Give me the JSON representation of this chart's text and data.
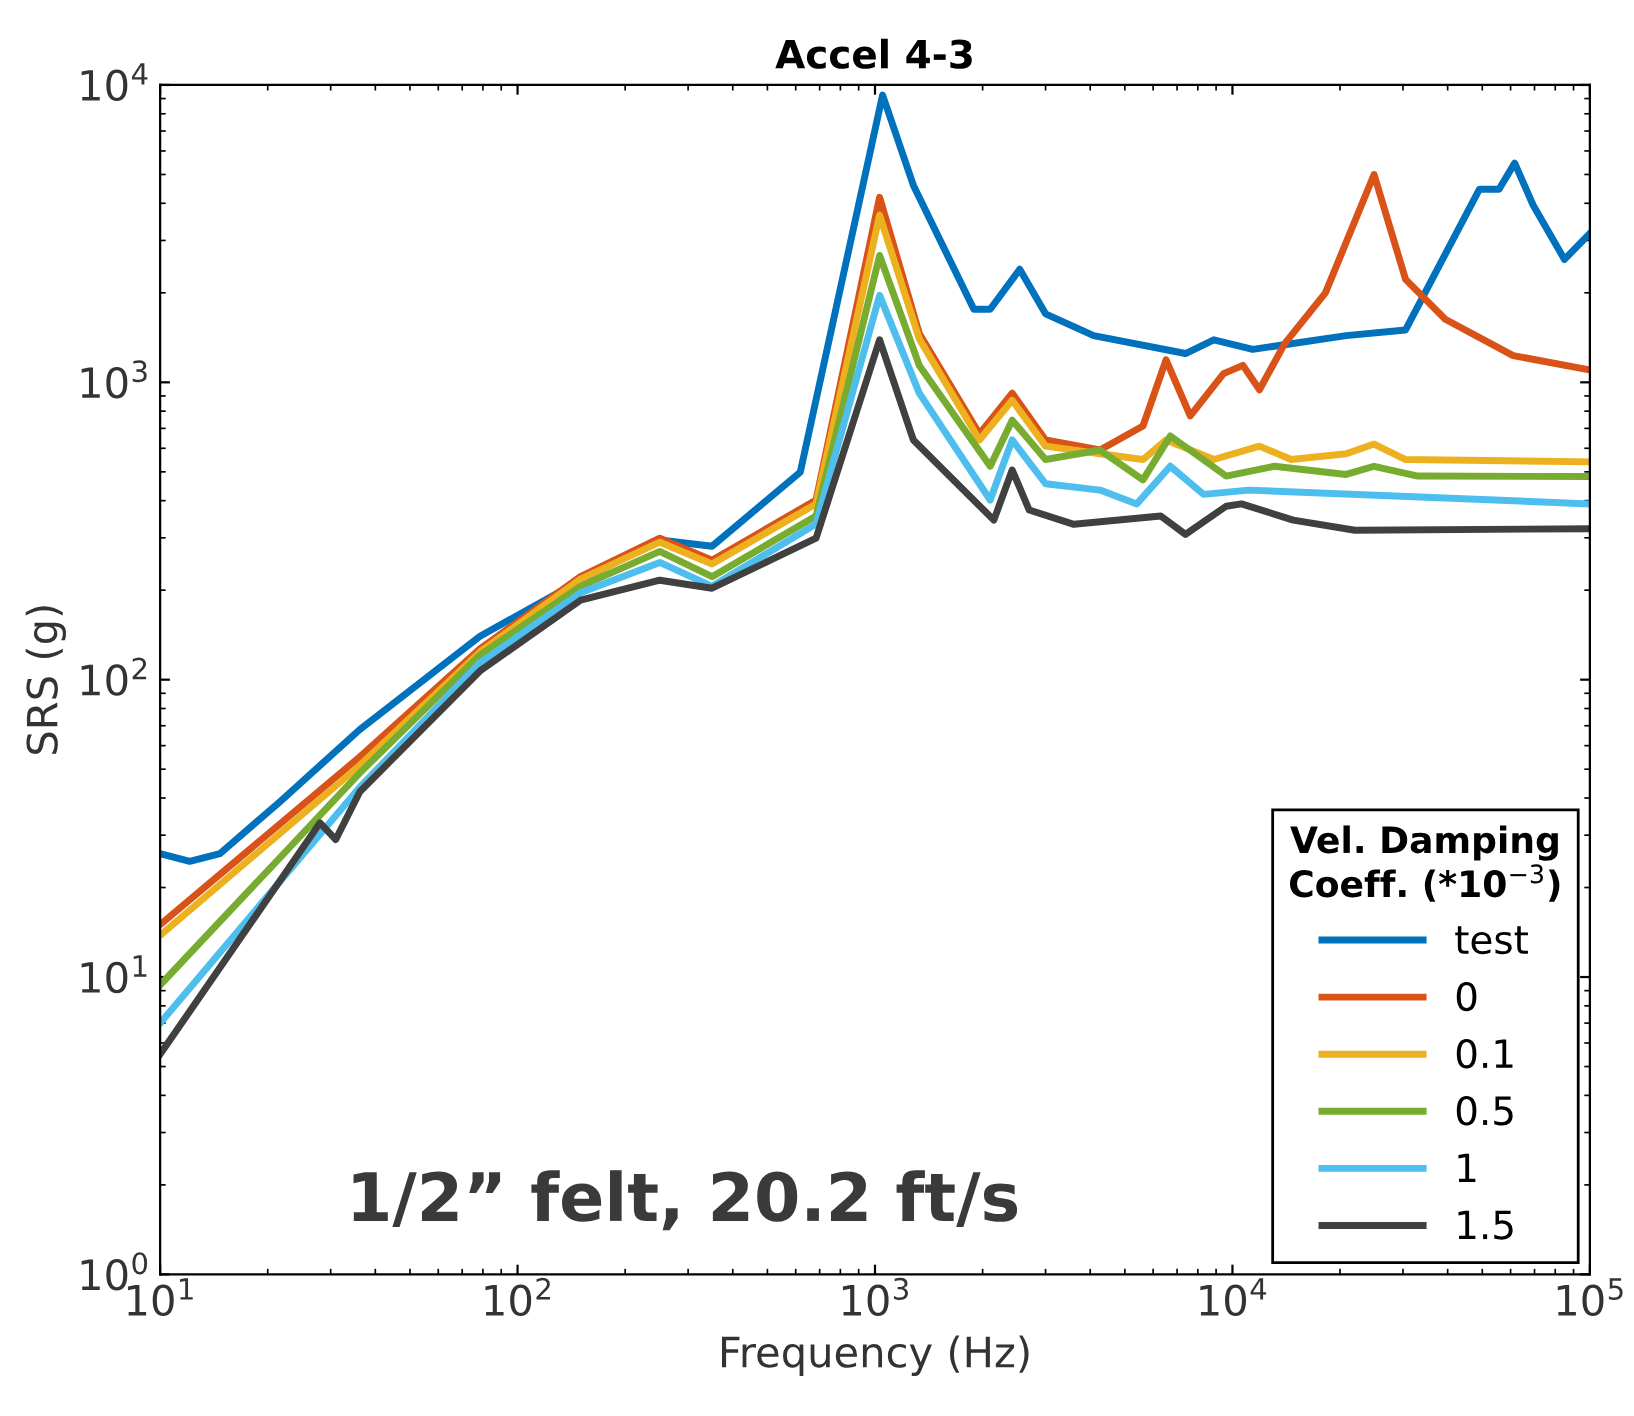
{
  "chart_data": {
    "type": "line",
    "title": "Accel 4-3",
    "xlabel": "Frequency (Hz)",
    "ylabel": "SRS (g)",
    "legend_title": "Vel. Damping\nCoeff. (*10$^{−3}$)",
    "legend": "bottom right",
    "log": "xy",
    "grid": false,
    "line_style": "solid",
    "xlim": [
      10,
      100000
    ],
    "ylim": [
      1,
      10000
    ],
    "xticks": [
      {
        "value": 10,
        "label": "10$^{1}$"
      },
      {
        "value": 100,
        "label": "10$^{2}$"
      },
      {
        "value": 1000,
        "label": "10$^{3}$"
      },
      {
        "value": 10000,
        "label": "10$^{4}$"
      },
      {
        "value": 100000,
        "label": "10$^{5}$"
      }
    ],
    "yticks": [
      {
        "value": 1,
        "label": "10$^{0}$"
      },
      {
        "value": 10,
        "label": "10$^{1}$"
      },
      {
        "value": 100,
        "label": "10$^{2}$"
      },
      {
        "value": 1000,
        "label": "10$^{3}$"
      },
      {
        "value": 10000,
        "label": "10$^{4}$"
      }
    ],
    "annotations": [
      "1/2” felt, 20.2 ft/s"
    ],
    "series": [
      {
        "name": "test",
        "color": "#0072bd",
        "x": [
          10,
          12.1,
          14.7,
          21.7,
          36.2,
          78.5,
          150,
          250,
          350,
          618,
          1050,
          1280,
          1890,
          2100,
          2540,
          3000,
          4090,
          7390,
          8870,
          11400,
          20800,
          30500,
          39400,
          49100,
          55700,
          61600,
          69400,
          84900,
          100000
        ],
        "values": [
          26,
          24.5,
          26,
          39,
          68,
          140,
          216,
          295,
          281,
          499,
          9250,
          4600,
          1760,
          1760,
          2400,
          1700,
          1436,
          1250,
          1390,
          1290,
          1436,
          1500,
          2700,
          4460,
          4460,
          5460,
          3940,
          2590,
          3170
        ]
      },
      {
        "name": "0",
        "color": "#d95319",
        "x": [
          10,
          36.2,
          78.5,
          150,
          250,
          350,
          684,
          1030,
          1330,
          1960,
          2420,
          3000,
          4260,
          5620,
          6520,
          7620,
          9440,
          10700,
          11900,
          14000,
          18200,
          24900,
          30500,
          39400,
          61000,
          100000
        ],
        "values": [
          15,
          55,
          127,
          222,
          299,
          252,
          402,
          4190,
          1460,
          670,
          920,
          640,
          592,
          713,
          1190,
          771,
          1070,
          1140,
          944,
          1350,
          2000,
          5000,
          2220,
          1630,
          1230,
          1100
        ]
      },
      {
        "name": "0.1",
        "color": "#edb120",
        "x": [
          10,
          36.2,
          78.5,
          150,
          250,
          350,
          684,
          1030,
          1330,
          1960,
          2420,
          3000,
          4260,
          5620,
          6520,
          8870,
          11900,
          14600,
          20800,
          24900,
          30500,
          100000
        ],
        "values": [
          13.8,
          51.5,
          124,
          218,
          290,
          245,
          390,
          3650,
          1400,
          640,
          870,
          610,
          575,
          550,
          640,
          550,
          610,
          550,
          575,
          620,
          550,
          540
        ]
      },
      {
        "name": "0.5",
        "color": "#77ac30",
        "x": [
          10,
          36.2,
          78.5,
          150,
          250,
          350,
          684,
          1030,
          1330,
          2100,
          2420,
          3000,
          4260,
          5620,
          6700,
          9600,
          13100,
          20800,
          24900,
          33000,
          100000
        ],
        "values": [
          9.4,
          48.6,
          121,
          206,
          270,
          222,
          355,
          2670,
          1140,
          522,
          746,
          550,
          592,
          470,
          660,
          484,
          522,
          490,
          522,
          484,
          482
        ]
      },
      {
        "name": "1",
        "color": "#4dbeee",
        "x": [
          10,
          36.2,
          78.5,
          150,
          250,
          350,
          684,
          1030,
          1330,
          2100,
          2420,
          3000,
          4260,
          5400,
          6700,
          8300,
          11100,
          100000
        ],
        "values": [
          7,
          43.5,
          114,
          196,
          248,
          206,
          334,
          1960,
          920,
          402,
          640,
          456,
          434,
          390,
          522,
          420,
          434,
          390
        ]
      },
      {
        "name": "1.5",
        "color": "#404040",
        "x": [
          10,
          28,
          31,
          36.2,
          78.5,
          150,
          250,
          350,
          684,
          1030,
          1280,
          1600,
          2150,
          2420,
          2700,
          3600,
          6300,
          7390,
          9600,
          10600,
          14800,
          22000,
          100000
        ],
        "values": [
          5.5,
          33,
          29,
          42,
          107,
          185,
          216,
          203,
          299,
          1390,
          640,
          490,
          344,
          507,
          372,
          333,
          355,
          308,
          383,
          390,
          344,
          318,
          322
        ]
      }
    ]
  }
}
